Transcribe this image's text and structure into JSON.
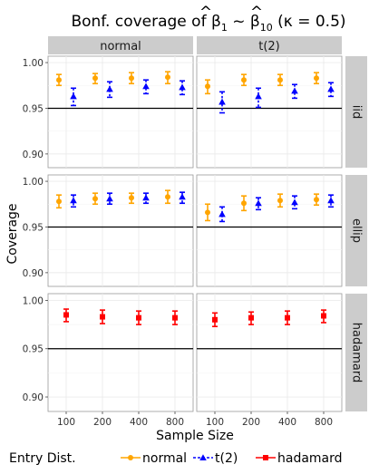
{
  "title": {
    "prefix": "Bonf. coverage of ",
    "beta": "β",
    "hat": "^",
    "sub1": "1",
    "tilde": " ~ ",
    "sub2": "10",
    "kappa": " (κ = 0.5)"
  },
  "colors": {
    "normal": "#FFA500",
    "t2": "#0000FF",
    "hadamard": "#FF0000",
    "reference_line": "#000000",
    "strip_bg": "#cccccc",
    "grid": "#ebebeb"
  },
  "chart_data": {
    "type": "scatter",
    "xlabel": "Sample Size",
    "ylabel": "Coverage",
    "x_categories": [
      "100",
      "200",
      "400",
      "800"
    ],
    "y_ticks": [
      "0.90",
      "0.95",
      "1.00"
    ],
    "ylim": [
      0.885,
      1.007
    ],
    "reference_line": 0.95,
    "columns": [
      "normal",
      "t(2)"
    ],
    "rows": [
      "iid",
      "ellip",
      "hadamard"
    ],
    "legend": {
      "title": "Entry Dist.",
      "position": "bottom",
      "entries": [
        "normal",
        "t(2)",
        "hadamard"
      ]
    },
    "panels": [
      {
        "row": "iid",
        "col": "normal",
        "series": [
          {
            "name": "normal",
            "mean": [
              0.981,
              0.983,
              0.983,
              0.984
            ],
            "lo": [
              0.975,
              0.977,
              0.977,
              0.977
            ],
            "hi": [
              0.987,
              0.988,
              0.989,
              0.99
            ]
          },
          {
            "name": "t(2)",
            "mean": [
              0.963,
              0.971,
              0.974,
              0.973
            ],
            "lo": [
              0.953,
              0.962,
              0.966,
              0.965
            ],
            "hi": [
              0.972,
              0.979,
              0.981,
              0.98
            ]
          }
        ]
      },
      {
        "row": "iid",
        "col": "t(2)",
        "series": [
          {
            "name": "normal",
            "mean": [
              0.974,
              0.981,
              0.981,
              0.983
            ],
            "lo": [
              0.966,
              0.975,
              0.975,
              0.977
            ],
            "hi": [
              0.981,
              0.987,
              0.987,
              0.989
            ]
          },
          {
            "name": "t(2)",
            "mean": [
              0.957,
              0.963,
              0.969,
              0.971
            ],
            "lo": [
              0.945,
              0.951,
              0.961,
              0.963
            ],
            "hi": [
              0.968,
              0.972,
              0.976,
              0.978
            ]
          }
        ]
      },
      {
        "row": "ellip",
        "col": "normal",
        "series": [
          {
            "name": "normal",
            "mean": [
              0.978,
              0.981,
              0.982,
              0.983
            ],
            "lo": [
              0.971,
              0.975,
              0.976,
              0.976
            ],
            "hi": [
              0.985,
              0.987,
              0.987,
              0.99
            ]
          },
          {
            "name": "t(2)",
            "mean": [
              0.979,
              0.981,
              0.982,
              0.983
            ],
            "lo": [
              0.972,
              0.975,
              0.976,
              0.976
            ],
            "hi": [
              0.985,
              0.987,
              0.987,
              0.988
            ]
          }
        ]
      },
      {
        "row": "ellip",
        "col": "t(2)",
        "series": [
          {
            "name": "normal",
            "mean": [
              0.966,
              0.976,
              0.979,
              0.98
            ],
            "lo": [
              0.957,
              0.968,
              0.972,
              0.974
            ],
            "hi": [
              0.975,
              0.984,
              0.986,
              0.986
            ]
          },
          {
            "name": "t(2)",
            "mean": [
              0.964,
              0.976,
              0.977,
              0.979
            ],
            "lo": [
              0.956,
              0.969,
              0.97,
              0.972
            ],
            "hi": [
              0.972,
              0.982,
              0.984,
              0.985
            ]
          }
        ]
      },
      {
        "row": "hadamard",
        "col": "normal",
        "series": [
          {
            "name": "hadamard",
            "mean": [
              0.985,
              0.983,
              0.982,
              0.982
            ],
            "lo": [
              0.978,
              0.976,
              0.975,
              0.975
            ],
            "hi": [
              0.991,
              0.99,
              0.989,
              0.989
            ]
          }
        ]
      },
      {
        "row": "hadamard",
        "col": "t(2)",
        "series": [
          {
            "name": "hadamard",
            "mean": [
              0.98,
              0.982,
              0.982,
              0.984
            ],
            "lo": [
              0.973,
              0.975,
              0.975,
              0.977
            ],
            "hi": [
              0.987,
              0.988,
              0.989,
              0.99
            ]
          }
        ]
      }
    ]
  }
}
